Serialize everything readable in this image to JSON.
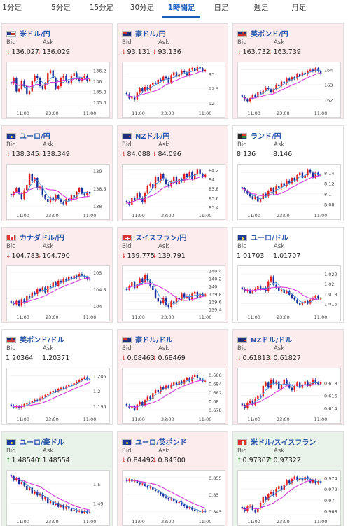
{
  "tabs": [
    {
      "label": "1分足",
      "active": false
    },
    {
      "label": "5分足",
      "active": false
    },
    {
      "label": "15分足",
      "active": false
    },
    {
      "label": "30分足",
      "active": false
    },
    {
      "label": "1時間足",
      "active": true
    },
    {
      "label": "日足",
      "active": false
    },
    {
      "label": "週足",
      "active": false
    },
    {
      "label": "月足",
      "active": false
    }
  ],
  "labels": {
    "bid": "Bid",
    "ask": "Ask"
  },
  "colors": {
    "down_bg": "#fcecee",
    "up_bg": "#eaf3ea",
    "title": "#2a55a6",
    "bull": "#e02020",
    "bear": "#1a2f9a",
    "ma_short": "#4f8fd6",
    "ma_long": "#d23bd6"
  },
  "pairs": [
    {
      "name": "米ドル/円",
      "flag": "us",
      "trend": "down",
      "bid": "136.027",
      "ask": "136.029",
      "x_ticks": [
        "11:00",
        "23:00",
        "11:00"
      ],
      "y_ticks": [
        "136.2",
        "136",
        "135.8",
        "135.6"
      ],
      "y_range": [
        135.5,
        136.3
      ],
      "closes": [
        135.95,
        136.05,
        135.8,
        135.85,
        136.0,
        135.9,
        135.75,
        135.8,
        136.0,
        136.1,
        136.05,
        135.9,
        135.85,
        135.95,
        136.15,
        136.2,
        136.05,
        135.85,
        135.9,
        136.05,
        136.1,
        136.0,
        135.95,
        136.1,
        136.15,
        136.05,
        136.0,
        136.05,
        136.1,
        136.0,
        136.03
      ]
    },
    {
      "name": "豪ドル/円",
      "flag": "au",
      "trend": "down",
      "bid": "93.131",
      "ask": "93.136",
      "x_ticks": [
        "11:00",
        "23:00",
        "11:00"
      ],
      "y_ticks": [
        "93",
        "92.5",
        "92"
      ],
      "y_range": [
        91.85,
        93.3
      ],
      "closes": [
        92.3,
        92.15,
        92.2,
        92.1,
        92.35,
        92.5,
        92.4,
        92.55,
        92.45,
        92.6,
        92.7,
        92.65,
        92.8,
        92.75,
        92.9,
        92.85,
        92.7,
        92.95,
        93.05,
        92.9,
        93.0,
        93.1,
        93.05,
        92.95,
        93.15,
        93.2,
        93.1,
        93.25,
        93.2,
        93.1,
        93.13
      ]
    },
    {
      "name": "英ポンド/円",
      "flag": "gb",
      "trend": "down",
      "bid": "163.732",
      "ask": "163.739",
      "x_ticks": [
        "11:00",
        "23:00",
        "11:00"
      ],
      "y_ticks": [
        "164",
        "163",
        "162"
      ],
      "y_range": [
        161.5,
        164.3
      ],
      "closes": [
        162.2,
        162.0,
        161.9,
        162.1,
        162.3,
        162.2,
        162.5,
        162.4,
        162.6,
        162.8,
        162.7,
        162.5,
        162.7,
        163.0,
        162.9,
        163.2,
        163.1,
        163.4,
        163.3,
        163.5,
        163.4,
        163.7,
        163.6,
        163.8,
        163.7,
        163.9,
        164.0,
        163.9,
        164.1,
        163.9,
        163.73
      ]
    },
    {
      "name": "ユーロ/円",
      "flag": "eu",
      "trend": "down",
      "bid": "138.345",
      "ask": "138.349",
      "x_ticks": [
        "11:00",
        "23:00",
        "11:00"
      ],
      "y_ticks": [
        "139",
        "138.5",
        "138"
      ],
      "y_range": [
        137.9,
        139.1
      ],
      "closes": [
        138.3,
        138.4,
        138.5,
        138.35,
        138.2,
        138.45,
        138.6,
        138.9,
        138.7,
        138.8,
        138.5,
        138.55,
        138.3,
        138.2,
        138.1,
        138.25,
        138.15,
        138.3,
        138.2,
        138.1,
        138.05,
        138.2,
        138.15,
        138.3,
        138.25,
        138.4,
        138.5,
        138.35,
        138.3,
        138.4,
        138.35
      ]
    },
    {
      "name": "NZドル/円",
      "flag": "nz",
      "trend": "down",
      "bid": "84.088",
      "ask": "84.096",
      "x_ticks": [
        "11:00",
        "23:00",
        "11:00"
      ],
      "y_ticks": [
        "84.2",
        "84",
        "83.8",
        "83.6",
        "83.4"
      ],
      "y_range": [
        83.35,
        84.25
      ],
      "closes": [
        83.5,
        83.45,
        83.6,
        83.55,
        83.7,
        83.6,
        83.5,
        83.7,
        83.85,
        83.9,
        83.8,
        84.05,
        83.95,
        84.1,
        84.0,
        83.9,
        83.85,
        83.95,
        84.05,
        83.9,
        84.0,
        83.95,
        84.1,
        84.05,
        84.15,
        84.0,
        84.1,
        84.2,
        84.1,
        84.05,
        84.09
      ]
    },
    {
      "name": "ランド/円",
      "flag": "za",
      "trend": "flat",
      "bid": "8.136",
      "ask": "8.146",
      "x_ticks": [
        "11:00",
        "23:00",
        "11:00"
      ],
      "y_ticks": [
        "8.14",
        "8.12",
        "8.1",
        "8.08"
      ],
      "y_range": [
        8.07,
        8.15
      ],
      "closes": [
        8.11,
        8.105,
        8.1,
        8.095,
        8.09,
        8.095,
        8.085,
        8.09,
        8.1,
        8.095,
        8.105,
        8.11,
        8.1,
        8.115,
        8.11,
        8.12,
        8.115,
        8.125,
        8.12,
        8.13,
        8.125,
        8.135,
        8.14,
        8.13,
        8.135,
        8.145,
        8.14,
        8.13,
        8.14,
        8.135,
        8.136
      ]
    },
    {
      "name": "カナダドル/円",
      "flag": "ca",
      "trend": "down",
      "bid": "104.783",
      "ask": "104.790",
      "x_ticks": [
        "11:00",
        "23:00",
        "11:00"
      ],
      "y_ticks": [
        "105",
        "104.5",
        "104"
      ],
      "y_range": [
        103.85,
        105.1
      ],
      "closes": [
        104.1,
        104.05,
        104.15,
        104.0,
        104.2,
        104.1,
        104.3,
        104.25,
        104.4,
        104.35,
        104.5,
        104.45,
        104.55,
        104.4,
        104.6,
        104.55,
        104.7,
        104.6,
        104.75,
        104.7,
        104.8,
        104.75,
        104.85,
        104.8,
        104.9,
        104.85,
        104.95,
        104.9,
        104.85,
        104.8,
        104.78
      ]
    },
    {
      "name": "スイスフラン/円",
      "flag": "ch",
      "trend": "down",
      "bid": "139.775",
      "ask": "139.791",
      "x_ticks": [
        "11:00",
        "23:00",
        "11:00"
      ],
      "y_ticks": [
        "140.4",
        "140.2",
        "140",
        "139.8",
        "139.6",
        "139.4"
      ],
      "y_range": [
        139.35,
        140.45
      ],
      "closes": [
        139.9,
        140.0,
        140.1,
        139.95,
        140.05,
        140.2,
        140.1,
        140.3,
        140.15,
        140.0,
        139.9,
        139.7,
        139.6,
        139.55,
        139.7,
        139.5,
        139.45,
        139.6,
        139.55,
        139.7,
        139.65,
        139.8,
        139.7,
        139.75,
        139.65,
        139.8,
        139.85,
        139.7,
        139.8,
        139.75,
        139.78
      ]
    },
    {
      "name": "ユーロ/ドル",
      "flag": "eu",
      "trend": "flat",
      "bid": "1.01703",
      "ask": "1.01707",
      "x_ticks": [
        "11:00",
        "23:00",
        "11:00"
      ],
      "y_ticks": [
        "1.022",
        "1.02",
        "1.018",
        "1.016"
      ],
      "y_range": [
        1.0145,
        1.023
      ],
      "closes": [
        1.019,
        1.0185,
        1.0188,
        1.0182,
        1.0186,
        1.019,
        1.0195,
        1.0188,
        1.0192,
        1.0185,
        1.0205,
        1.0215,
        1.0198,
        1.0192,
        1.0185,
        1.0188,
        1.0182,
        1.0185,
        1.0178,
        1.0172,
        1.0168,
        1.0162,
        1.0158,
        1.0162,
        1.0165,
        1.016,
        1.0168,
        1.0172,
        1.0175,
        1.017,
        1.017
      ]
    },
    {
      "name": "英ポンド/ドル",
      "flag": "gb",
      "trend": "flat",
      "bid": "1.20364",
      "ask": "1.20371",
      "x_ticks": [
        "11:00",
        "23:00",
        "11:00"
      ],
      "y_ticks": [
        "1.205",
        "1.2",
        "1.195"
      ],
      "y_range": [
        1.1925,
        1.2065
      ],
      "closes": [
        1.195,
        1.1945,
        1.1948,
        1.1942,
        1.195,
        1.1955,
        1.196,
        1.1958,
        1.1965,
        1.197,
        1.1968,
        1.1975,
        1.198,
        1.1985,
        1.199,
        1.1995,
        1.2,
        1.1998,
        1.2005,
        1.201,
        1.2008,
        1.2015,
        1.202,
        1.2018,
        1.2025,
        1.203,
        1.2035,
        1.204,
        1.2045,
        1.2038,
        1.2036
      ]
    },
    {
      "name": "豪ドル/ドル",
      "flag": "au",
      "trend": "down",
      "bid": "0.68463",
      "ask": "0.68469",
      "x_ticks": [
        "11:00",
        "23:00",
        "11:00"
      ],
      "y_ticks": [
        "0.686",
        "0.684",
        "0.682",
        "0.68",
        "0.678"
      ],
      "y_range": [
        0.6772,
        0.6868
      ],
      "closes": [
        0.679,
        0.6785,
        0.6788,
        0.678,
        0.6792,
        0.6798,
        0.679,
        0.6802,
        0.681,
        0.6805,
        0.6818,
        0.6825,
        0.682,
        0.6832,
        0.6828,
        0.6835,
        0.683,
        0.6838,
        0.6842,
        0.6836,
        0.6845,
        0.684,
        0.6848,
        0.6852,
        0.6845,
        0.6855,
        0.686,
        0.6852,
        0.6848,
        0.6845,
        0.6846
      ]
    },
    {
      "name": "NZドル/ドル",
      "flag": "nz",
      "trend": "down",
      "bid": "0.61813",
      "ask": "0.61827",
      "x_ticks": [
        "11:00",
        "23:00",
        "11:00"
      ],
      "y_ticks": [
        "0.618",
        "0.616",
        "0.614"
      ],
      "y_range": [
        0.6132,
        0.6198
      ],
      "closes": [
        0.6145,
        0.614,
        0.6148,
        0.6152,
        0.6145,
        0.6155,
        0.616,
        0.6158,
        0.6175,
        0.618,
        0.6172,
        0.6185,
        0.6178,
        0.6182,
        0.617,
        0.6176,
        0.6185,
        0.6178,
        0.6172,
        0.6168,
        0.6175,
        0.618,
        0.6172,
        0.6176,
        0.6182,
        0.6175,
        0.6178,
        0.6185,
        0.618,
        0.6178,
        0.6181
      ]
    },
    {
      "name": "ユーロ/豪ドル",
      "flag": "eu",
      "trend": "up",
      "bid": "1.48540",
      "ask": "1.48554",
      "x_ticks": [
        "11:00",
        "23:00",
        "11:00"
      ],
      "y_ticks": [
        "1.5",
        "1.49"
      ],
      "y_range": [
        1.4835,
        1.5055
      ],
      "closes": [
        1.504,
        1.502,
        1.503,
        1.5,
        1.501,
        1.499,
        1.497,
        1.498,
        1.495,
        1.496,
        1.494,
        1.495,
        1.492,
        1.493,
        1.49,
        1.491,
        1.489,
        1.49,
        1.488,
        1.489,
        1.487,
        1.4885,
        1.487,
        1.486,
        1.4865,
        1.4855,
        1.486,
        1.485,
        1.4858,
        1.485,
        1.4854
      ]
    },
    {
      "name": "ユーロ/英ポンド",
      "flag": "eu",
      "trend": "down",
      "bid": "0.84492",
      "ask": "0.84500",
      "x_ticks": [
        "11:00",
        "23:00",
        "11:00"
      ],
      "y_ticks": [
        "0.855",
        "0.85",
        "0.845"
      ],
      "y_range": [
        0.8438,
        0.8562
      ],
      "closes": [
        0.854,
        0.8545,
        0.8538,
        0.8542,
        0.8535,
        0.853,
        0.8532,
        0.8525,
        0.852,
        0.8522,
        0.8515,
        0.851,
        0.8505,
        0.85,
        0.8495,
        0.849,
        0.8485,
        0.8488,
        0.848,
        0.8475,
        0.8478,
        0.847,
        0.8465,
        0.846,
        0.8462,
        0.8455,
        0.8452,
        0.845,
        0.8448,
        0.8452,
        0.8449
      ]
    },
    {
      "name": "米ドル/スイスフラン",
      "flag": "ch",
      "trend": "up",
      "bid": "0.97307",
      "ask": "0.97322",
      "x_ticks": [
        "11:00",
        "23:00",
        "11:00"
      ],
      "y_ticks": [
        "0.974",
        "0.972",
        "0.97",
        "0.968"
      ],
      "y_range": [
        0.9672,
        0.9748
      ],
      "closes": [
        0.9685,
        0.968,
        0.9688,
        0.969,
        0.9682,
        0.9678,
        0.9685,
        0.9695,
        0.9705,
        0.97,
        0.971,
        0.9715,
        0.9708,
        0.972,
        0.9725,
        0.9718,
        0.9728,
        0.9735,
        0.973,
        0.9738,
        0.9742,
        0.9736,
        0.974,
        0.9735,
        0.9742,
        0.9738,
        0.9732,
        0.9736,
        0.973,
        0.9734,
        0.9731
      ]
    }
  ]
}
